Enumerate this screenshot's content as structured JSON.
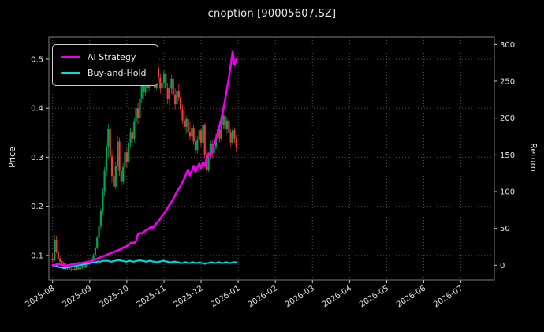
{
  "chart_data": {
    "type": "candlestick+line",
    "title": "cnoption [90005607.SZ]",
    "ylabel_left": "Price",
    "ylabel_right": "Return",
    "x_axis": {
      "tick_labels": [
        "2025-08",
        "2025-09",
        "2025-10",
        "2025-11",
        "2025-12",
        "2026-01",
        "2026-02",
        "2026-03",
        "2026-04",
        "2026-05",
        "2026-06",
        "2026-07"
      ],
      "xlim_months": [
        -0.1,
        11.9
      ]
    },
    "price_axis": {
      "ticks": [
        0.1,
        0.2,
        0.3,
        0.4,
        0.5
      ],
      "ylim": [
        0.05,
        0.545
      ]
    },
    "return_axis": {
      "ticks": [
        0,
        50,
        100,
        150,
        200,
        250,
        300
      ],
      "ylim": [
        -20,
        310
      ]
    },
    "legend": {
      "position": "upper-left"
    },
    "colors": {
      "background": "#000000",
      "text": "#eaeaea",
      "grid": "#4f4f4f",
      "spine": "#7d7d7d",
      "tick": "#cfcfcf",
      "candle_up": "#00a650",
      "candle_down": "#e83b3b",
      "ai_line": "#ee00ee",
      "bh_line": "#00dede"
    },
    "candles": {
      "start_month": 0,
      "month_step": 0.05,
      "ohlc": [
        [
          0.092,
          0.105,
          0.086,
          0.09
        ],
        [
          0.09,
          0.142,
          0.088,
          0.132
        ],
        [
          0.132,
          0.14,
          0.104,
          0.108
        ],
        [
          0.108,
          0.112,
          0.09,
          0.094
        ],
        [
          0.094,
          0.098,
          0.084,
          0.088
        ],
        [
          0.088,
          0.09,
          0.08,
          0.084
        ],
        [
          0.084,
          0.088,
          0.078,
          0.081
        ],
        [
          0.081,
          0.084,
          0.074,
          0.077
        ],
        [
          0.077,
          0.08,
          0.071,
          0.074
        ],
        [
          0.074,
          0.078,
          0.069,
          0.072
        ],
        [
          0.072,
          0.075,
          0.067,
          0.07
        ],
        [
          0.07,
          0.076,
          0.068,
          0.073
        ],
        [
          0.073,
          0.075,
          0.068,
          0.07
        ],
        [
          0.07,
          0.077,
          0.069,
          0.075
        ],
        [
          0.075,
          0.077,
          0.07,
          0.072
        ],
        [
          0.072,
          0.078,
          0.07,
          0.076
        ],
        [
          0.076,
          0.081,
          0.073,
          0.079
        ],
        [
          0.079,
          0.081,
          0.073,
          0.075
        ],
        [
          0.075,
          0.083,
          0.074,
          0.081
        ],
        [
          0.081,
          0.087,
          0.079,
          0.084
        ],
        [
          0.084,
          0.089,
          0.081,
          0.086
        ],
        [
          0.086,
          0.094,
          0.084,
          0.092
        ],
        [
          0.092,
          0.104,
          0.09,
          0.101
        ],
        [
          0.101,
          0.119,
          0.098,
          0.116
        ],
        [
          0.116,
          0.14,
          0.112,
          0.136
        ],
        [
          0.136,
          0.165,
          0.13,
          0.16
        ],
        [
          0.16,
          0.196,
          0.152,
          0.19
        ],
        [
          0.19,
          0.238,
          0.182,
          0.231
        ],
        [
          0.231,
          0.28,
          0.222,
          0.272
        ],
        [
          0.272,
          0.33,
          0.262,
          0.322
        ],
        [
          0.322,
          0.368,
          0.3,
          0.358
        ],
        [
          0.358,
          0.38,
          0.29,
          0.302
        ],
        [
          0.302,
          0.315,
          0.248,
          0.262
        ],
        [
          0.262,
          0.275,
          0.228,
          0.24
        ],
        [
          0.24,
          0.29,
          0.235,
          0.282
        ],
        [
          0.282,
          0.345,
          0.275,
          0.332
        ],
        [
          0.332,
          0.34,
          0.262,
          0.272
        ],
        [
          0.272,
          0.282,
          0.238,
          0.25
        ],
        [
          0.25,
          0.288,
          0.245,
          0.28
        ],
        [
          0.28,
          0.32,
          0.27,
          0.31
        ],
        [
          0.31,
          0.318,
          0.278,
          0.29
        ],
        [
          0.29,
          0.338,
          0.285,
          0.33
        ],
        [
          0.33,
          0.36,
          0.32,
          0.35
        ],
        [
          0.35,
          0.358,
          0.322,
          0.338
        ],
        [
          0.338,
          0.38,
          0.33,
          0.372
        ],
        [
          0.372,
          0.408,
          0.36,
          0.4
        ],
        [
          0.4,
          0.41,
          0.368,
          0.38
        ],
        [
          0.38,
          0.428,
          0.372,
          0.42
        ],
        [
          0.42,
          0.458,
          0.41,
          0.45
        ],
        [
          0.45,
          0.46,
          0.42,
          0.432
        ],
        [
          0.432,
          0.478,
          0.425,
          0.47
        ],
        [
          0.47,
          0.48,
          0.432,
          0.442
        ],
        [
          0.442,
          0.488,
          0.435,
          0.48
        ],
        [
          0.48,
          0.522,
          0.47,
          0.505
        ],
        [
          0.505,
          0.512,
          0.462,
          0.472
        ],
        [
          0.472,
          0.482,
          0.432,
          0.442
        ],
        [
          0.442,
          0.49,
          0.438,
          0.482
        ],
        [
          0.482,
          0.492,
          0.452,
          0.462
        ],
        [
          0.462,
          0.47,
          0.43,
          0.44
        ],
        [
          0.44,
          0.462,
          0.42,
          0.452
        ],
        [
          0.452,
          0.478,
          0.44,
          0.47
        ],
        [
          0.47,
          0.476,
          0.432,
          0.442
        ],
        [
          0.442,
          0.452,
          0.408,
          0.418
        ],
        [
          0.418,
          0.448,
          0.405,
          0.44
        ],
        [
          0.44,
          0.468,
          0.43,
          0.46
        ],
        [
          0.46,
          0.466,
          0.42,
          0.428
        ],
        [
          0.428,
          0.44,
          0.398,
          0.408
        ],
        [
          0.408,
          0.442,
          0.4,
          0.435
        ],
        [
          0.435,
          0.45,
          0.415,
          0.422
        ],
        [
          0.422,
          0.43,
          0.39,
          0.398
        ],
        [
          0.398,
          0.408,
          0.368,
          0.375
        ],
        [
          0.375,
          0.395,
          0.355,
          0.362
        ],
        [
          0.362,
          0.385,
          0.348,
          0.378
        ],
        [
          0.378,
          0.384,
          0.342,
          0.35
        ],
        [
          0.35,
          0.372,
          0.335,
          0.342
        ],
        [
          0.342,
          0.368,
          0.332,
          0.36
        ],
        [
          0.36,
          0.366,
          0.325,
          0.332
        ],
        [
          0.332,
          0.345,
          0.308,
          0.315
        ],
        [
          0.315,
          0.342,
          0.308,
          0.335
        ],
        [
          0.335,
          0.362,
          0.328,
          0.355
        ],
        [
          0.355,
          0.36,
          0.322,
          0.33
        ],
        [
          0.33,
          0.372,
          0.325,
          0.365
        ],
        [
          0.365,
          0.37,
          0.298,
          0.305
        ],
        [
          0.305,
          0.315,
          0.268,
          0.275
        ],
        [
          0.275,
          0.308,
          0.27,
          0.3
        ],
        [
          0.3,
          0.335,
          0.295,
          0.328
        ],
        [
          0.328,
          0.335,
          0.298,
          0.308
        ],
        [
          0.308,
          0.33,
          0.3,
          0.322
        ],
        [
          0.322,
          0.348,
          0.315,
          0.34
        ],
        [
          0.34,
          0.365,
          0.332,
          0.358
        ],
        [
          0.358,
          0.364,
          0.33,
          0.338
        ],
        [
          0.338,
          0.372,
          0.332,
          0.365
        ],
        [
          0.365,
          0.392,
          0.358,
          0.385
        ],
        [
          0.385,
          0.39,
          0.35,
          0.358
        ],
        [
          0.358,
          0.382,
          0.348,
          0.375
        ],
        [
          0.375,
          0.38,
          0.342,
          0.35
        ],
        [
          0.35,
          0.358,
          0.322,
          0.33
        ],
        [
          0.33,
          0.362,
          0.325,
          0.355
        ],
        [
          0.355,
          0.36,
          0.33,
          0.338
        ],
        [
          0.338,
          0.345,
          0.31,
          0.32
        ]
      ]
    },
    "series": [
      {
        "name": "AI Strategy",
        "axis": "return",
        "color": "#ee00ee",
        "start_month": 0,
        "month_step": 0.05,
        "values": [
          0,
          0,
          1,
          2,
          1,
          0,
          0,
          -1,
          0,
          0,
          1,
          1,
          2,
          2,
          3,
          3,
          3,
          4,
          4,
          5,
          5,
          6,
          7,
          8,
          9,
          10,
          11,
          12,
          13,
          14,
          15,
          16,
          17,
          18,
          19,
          20,
          21,
          22,
          24,
          25,
          26,
          28,
          30,
          31,
          30,
          33,
          42,
          44,
          43,
          45,
          47,
          48,
          50,
          52,
          51,
          54,
          57,
          60,
          63,
          67,
          70,
          74,
          78,
          82,
          86,
          90,
          95,
          100,
          104,
          108,
          113,
          118,
          124,
          130,
          122,
          128,
          135,
          127,
          133,
          138,
          132,
          140,
          135,
          145,
          152,
          148,
          158,
          165,
          172,
          180,
          190,
          200,
          212,
          225,
          240,
          255,
          272,
          290,
          272,
          280
        ]
      },
      {
        "name": "Buy-and-Hold",
        "axis": "return",
        "color": "#00dede",
        "start_month": 0,
        "month_step": 0.05,
        "values": [
          0,
          -1,
          -1,
          -2,
          -3,
          -3,
          -4,
          -4,
          -3,
          -3,
          -2,
          -2,
          -1,
          -1,
          0,
          0,
          1,
          1,
          2,
          2,
          3,
          3,
          4,
          4,
          5,
          5,
          5,
          6,
          6,
          6,
          6,
          5,
          5,
          6,
          6,
          7,
          7,
          6,
          6,
          5,
          5,
          6,
          6,
          5,
          5,
          6,
          6,
          7,
          6,
          6,
          5,
          5,
          6,
          6,
          5,
          5,
          4,
          5,
          5,
          6,
          6,
          5,
          5,
          4,
          4,
          5,
          5,
          4,
          4,
          3,
          3,
          4,
          4,
          3,
          3,
          4,
          4,
          3,
          3,
          4,
          3,
          3,
          2,
          3,
          3,
          4,
          4,
          3,
          3,
          4,
          4,
          3,
          3,
          4,
          4,
          3,
          3,
          4,
          4,
          4
        ]
      }
    ]
  }
}
